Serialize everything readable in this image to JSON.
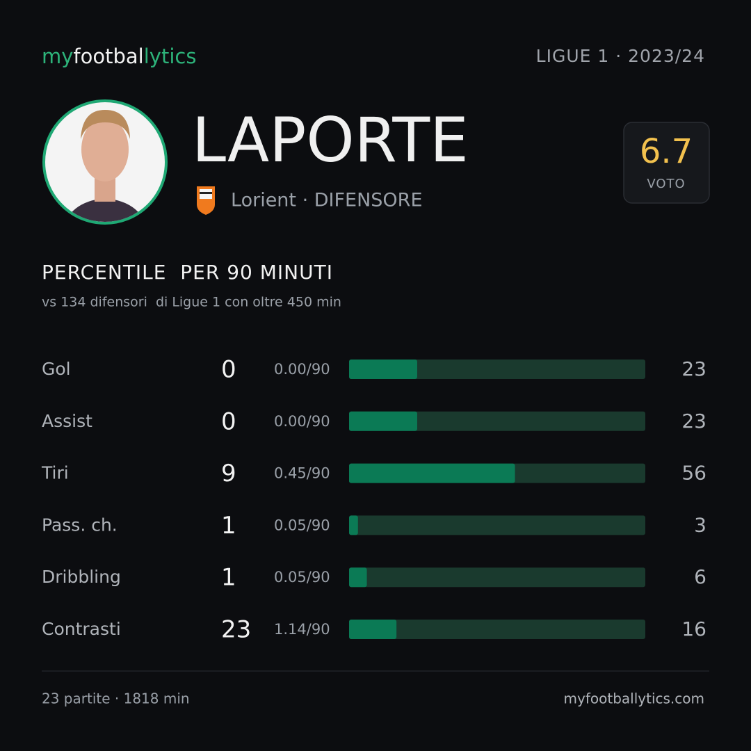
{
  "header": {
    "logo": [
      "my",
      "footbal",
      "lytics"
    ],
    "league": "LIGUE 1 · 2023/24"
  },
  "player": {
    "name": "LAPORTE",
    "team": "Lorient · DIFENSORE",
    "rating": 6.7,
    "rating_label": "VOTO"
  },
  "section": {
    "title": "PERCENTILE  PER 90 MINUTI",
    "subtitle": "vs 134 difensori  di Ligue 1 con oltre 450 min"
  },
  "rows": [
    {
      "label": "Gol",
      "total": 0,
      "per90": "0.00/90",
      "percentile": 23
    },
    {
      "label": "Assist",
      "total": 0,
      "per90": "0.00/90",
      "percentile": 23
    },
    {
      "label": "Tiri",
      "total": 9,
      "per90": "0.45/90",
      "percentile": 56
    },
    {
      "label": "Pass. ch.",
      "total": 1,
      "per90": "0.05/90",
      "percentile": 3
    },
    {
      "label": "Dribbling",
      "total": 1,
      "per90": "0.05/90",
      "percentile": 6
    },
    {
      "label": "Contrasti",
      "total": 23,
      "per90": "1.14/90",
      "percentile": 16
    }
  ],
  "footer": {
    "stats": "23 partite · 1818 min",
    "site": "myfootballytics.com"
  }
}
